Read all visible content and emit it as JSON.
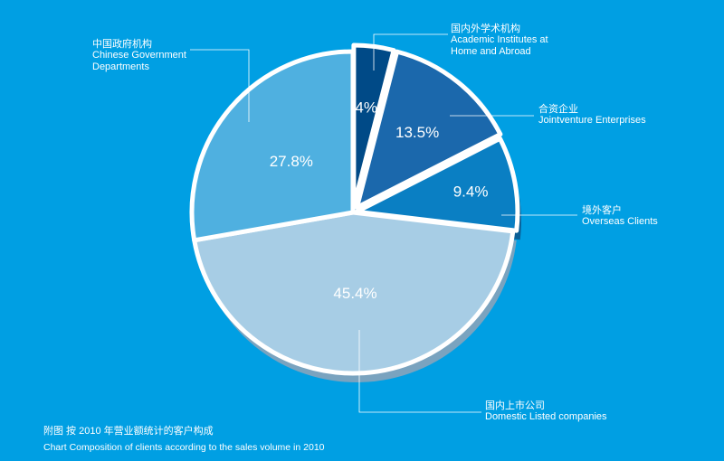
{
  "chart_data": {
    "type": "pie",
    "caption_zh": "附图  按 2010 年营业额统计的客户构成",
    "caption_en": "Chart  Composition of clients according to the sales volume in 2010",
    "slices": [
      {
        "label_zh": "国内外学术机构",
        "label_en": [
          "Academic Institutes at",
          "Home and Abroad"
        ],
        "value": 4,
        "value_label": "4%",
        "color": "#004a87",
        "side": "#00356a"
      },
      {
        "label_zh": "合资企业",
        "label_en": [
          "Jointventure Enterprises"
        ],
        "value": 13.5,
        "value_label": "13.5%",
        "color": "#1b68ac",
        "side": "#124f86"
      },
      {
        "label_zh": "境外客户",
        "label_en": [
          "Overseas Clients"
        ],
        "value": 9.4,
        "value_label": "9.4%",
        "color": "#0a7fc3",
        "side": "#0a5f96"
      },
      {
        "label_zh": "国内上市公司",
        "label_en": [
          "Domestic Listed companies"
        ],
        "value": 45.4,
        "value_label": "45.4%",
        "color": "#a7cde5",
        "side": "#7aa3bf"
      },
      {
        "label_zh": "中国政府机构",
        "label_en": [
          "Chinese Government",
          "Departments"
        ],
        "value": 27.8,
        "value_label": "27.8%",
        "color": "#4fb0e0",
        "side": "#3a8fbf"
      }
    ]
  }
}
